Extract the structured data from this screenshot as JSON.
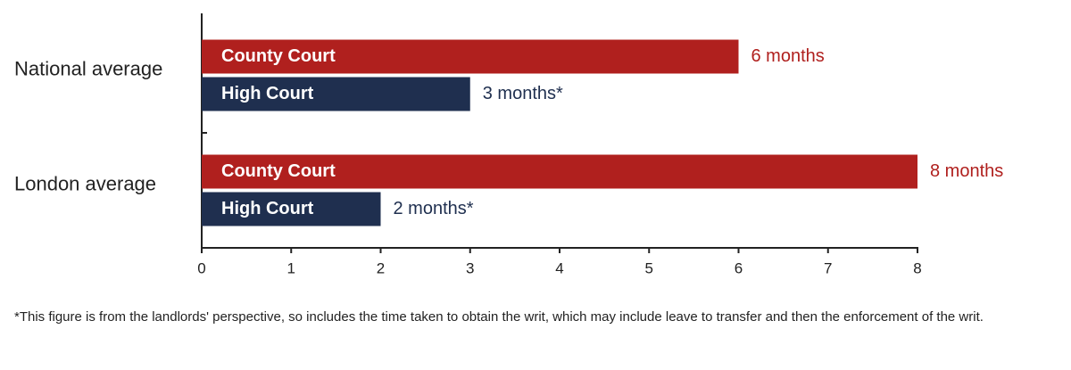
{
  "chart_data": {
    "type": "bar",
    "orientation": "horizontal",
    "categories": [
      "National average",
      "London average"
    ],
    "series": [
      {
        "name": "County Court",
        "color": "#b0201e",
        "values": [
          6,
          8
        ],
        "value_labels": [
          "6 months",
          "8 months"
        ]
      },
      {
        "name": "High Court",
        "color": "#1f2f4f",
        "values": [
          3,
          2
        ],
        "value_labels": [
          "3 months*",
          "2 months*"
        ]
      }
    ],
    "xlim": [
      0,
      8
    ],
    "xticks": [
      0,
      1,
      2,
      3,
      4,
      5,
      6,
      7,
      8
    ],
    "footnote": "*This figure is from the landlords' perspective, so includes the time taken to obtain the writ, which may include leave to transfer and then the enforcement of the writ."
  }
}
